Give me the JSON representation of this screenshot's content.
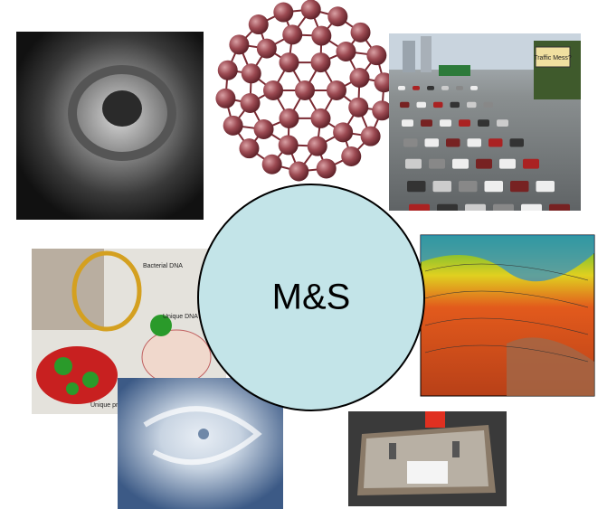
{
  "center_label": "M&S",
  "dna_figure": {
    "labels": [
      "Bacterial DNA",
      "Unique DNA signatures (now)",
      "Unique protein signatures (soon)"
    ]
  },
  "traffic_sign": "Traffic Mess?"
}
